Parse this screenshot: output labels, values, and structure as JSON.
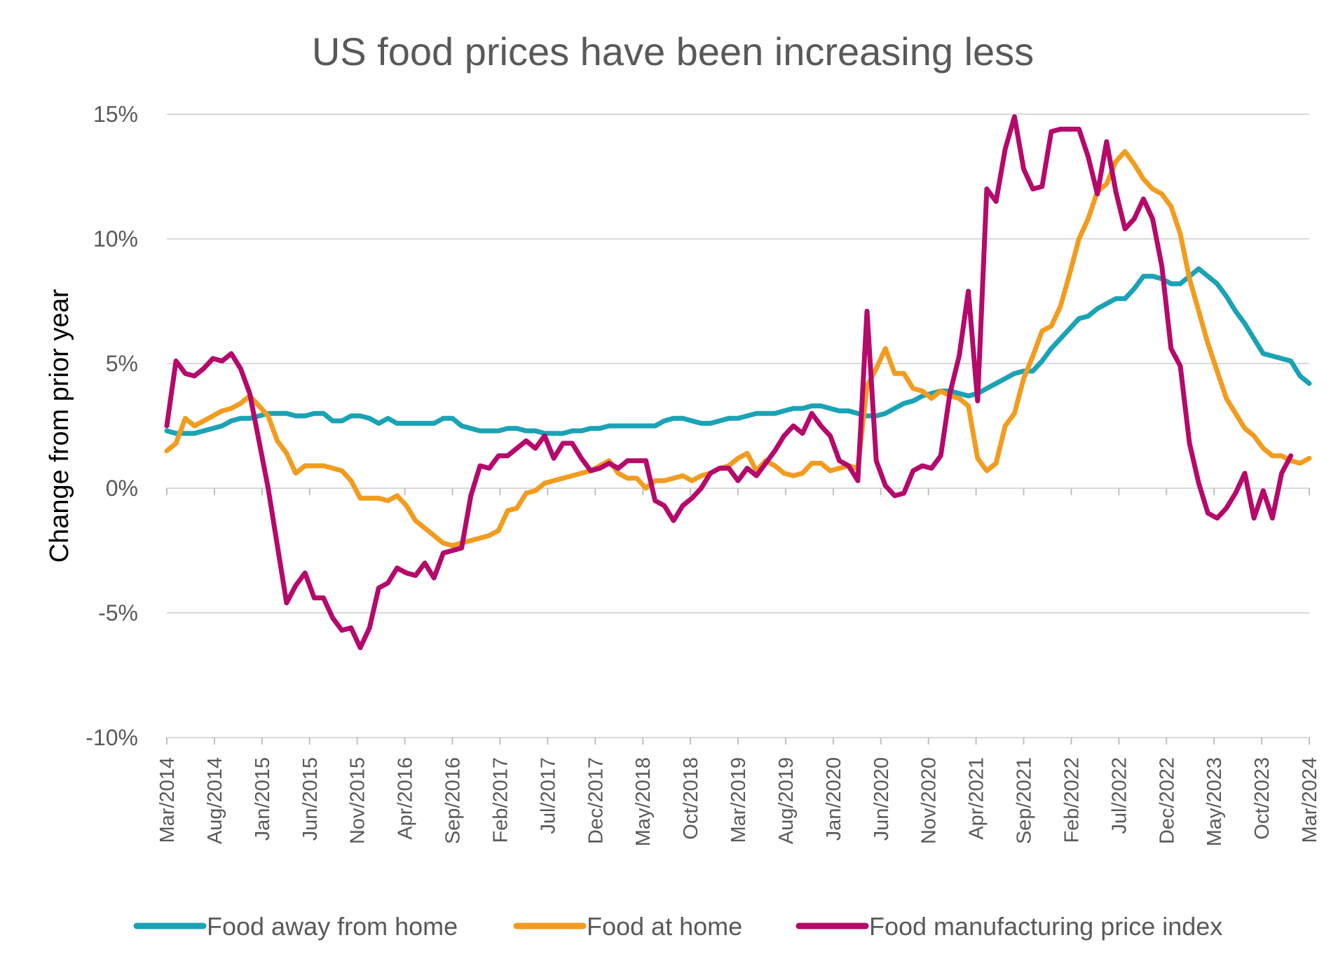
{
  "chart_data": {
    "type": "line",
    "title": "US food prices have been increasing less",
    "ylabel": "Change from prior year",
    "xlabel": "",
    "ylim": [
      -10,
      15
    ],
    "yticks": [
      15,
      10,
      5,
      0,
      -5,
      -10
    ],
    "ytick_labels": [
      "15%",
      "10%",
      "5%",
      "0%",
      "-5%",
      "-10%"
    ],
    "x_start": "Mar/2014",
    "x_end": "Mar/2024",
    "xtick_labels": [
      "Mar/2014",
      "Aug/2014",
      "Jan/2015",
      "Jun/2015",
      "Nov/2015",
      "Apr/2016",
      "Sep/2016",
      "Feb/2017",
      "Jul/2017",
      "Dec/2017",
      "May/2018",
      "Oct/2018",
      "Mar/2019",
      "Aug/2019",
      "Jan/2020",
      "Jun/2020",
      "Nov/2020",
      "Apr/2021",
      "Sep/2021",
      "Feb/2022",
      "Jul/2022",
      "Dec/2022",
      "May/2023",
      "Oct/2023",
      "Mar/2024"
    ],
    "grid": true,
    "legend_position": "bottom",
    "series": [
      {
        "name": "Food away from home",
        "color": "#1aa3b5",
        "values": [
          2.3,
          2.2,
          2.2,
          2.2,
          2.3,
          2.4,
          2.5,
          2.7,
          2.8,
          2.8,
          2.9,
          3.0,
          3.0,
          3.0,
          2.9,
          2.9,
          3.0,
          3.0,
          2.7,
          2.7,
          2.9,
          2.9,
          2.8,
          2.6,
          2.8,
          2.6,
          2.6,
          2.6,
          2.6,
          2.6,
          2.8,
          2.8,
          2.5,
          2.4,
          2.3,
          2.3,
          2.3,
          2.4,
          2.4,
          2.3,
          2.3,
          2.2,
          2.2,
          2.2,
          2.3,
          2.3,
          2.4,
          2.4,
          2.5,
          2.5,
          2.5,
          2.5,
          2.5,
          2.5,
          2.7,
          2.8,
          2.8,
          2.7,
          2.6,
          2.6,
          2.7,
          2.8,
          2.8,
          2.9,
          3.0,
          3.0,
          3.0,
          3.1,
          3.2,
          3.2,
          3.3,
          3.3,
          3.2,
          3.1,
          3.1,
          3.0,
          2.9,
          2.9,
          3.0,
          3.2,
          3.4,
          3.5,
          3.7,
          3.8,
          3.9,
          3.9,
          3.8,
          3.7,
          3.8,
          4.0,
          4.2,
          4.4,
          4.6,
          4.7,
          4.7,
          5.1,
          5.6,
          6.0,
          6.4,
          6.8,
          6.9,
          7.2,
          7.4,
          7.6,
          7.6,
          8.0,
          8.5,
          8.5,
          8.4,
          8.2,
          8.2,
          8.5,
          8.8,
          8.5,
          8.2,
          7.7,
          7.1,
          6.6,
          6.0,
          5.4,
          5.3,
          5.2,
          5.1,
          4.5,
          4.2
        ]
      },
      {
        "name": "Food at home",
        "color": "#f29c1f",
        "values": [
          1.5,
          1.8,
          2.8,
          2.5,
          2.7,
          2.9,
          3.1,
          3.2,
          3.4,
          3.7,
          3.3,
          2.9,
          1.9,
          1.4,
          0.6,
          0.9,
          0.9,
          0.9,
          0.8,
          0.7,
          0.3,
          -0.4,
          -0.4,
          -0.4,
          -0.5,
          -0.3,
          -0.7,
          -1.3,
          -1.6,
          -1.9,
          -2.2,
          -2.3,
          -2.2,
          -2.1,
          -2.0,
          -1.9,
          -1.7,
          -0.9,
          -0.8,
          -0.2,
          -0.1,
          0.2,
          0.3,
          0.4,
          0.5,
          0.6,
          0.7,
          0.9,
          1.1,
          0.6,
          0.4,
          0.4,
          0.0,
          0.3,
          0.3,
          0.4,
          0.5,
          0.3,
          0.5,
          0.6,
          0.8,
          0.9,
          1.2,
          1.4,
          0.7,
          1.1,
          0.9,
          0.6,
          0.5,
          0.6,
          1.0,
          1.0,
          0.7,
          0.8,
          0.9,
          0.8,
          4.1,
          4.8,
          5.6,
          4.6,
          4.6,
          4.0,
          3.9,
          3.6,
          3.9,
          3.7,
          3.6,
          3.3,
          1.2,
          0.7,
          1.0,
          2.5,
          3.0,
          4.4,
          5.3,
          6.3,
          6.5,
          7.3,
          8.6,
          10.0,
          10.8,
          11.9,
          12.2,
          13.1,
          13.5,
          13.0,
          12.4,
          12.0,
          11.8,
          11.3,
          10.2,
          8.4,
          7.1,
          5.8,
          4.7,
          3.6,
          3.0,
          2.4,
          2.1,
          1.6,
          1.3,
          1.3,
          1.1,
          1.0,
          1.2
        ]
      },
      {
        "name": "Food manufacturing price index",
        "color": "#b5096b",
        "values": [
          2.5,
          5.1,
          4.6,
          4.5,
          4.8,
          5.2,
          5.1,
          5.4,
          4.8,
          3.8,
          1.9,
          0.0,
          -2.3,
          -4.6,
          -3.9,
          -3.4,
          -4.4,
          -4.4,
          -5.2,
          -5.7,
          -5.6,
          -6.4,
          -5.6,
          -4.0,
          -3.8,
          -3.2,
          -3.4,
          -3.5,
          -3.0,
          -3.6,
          -2.6,
          -2.5,
          -2.4,
          -0.3,
          0.9,
          0.8,
          1.3,
          1.3,
          1.6,
          1.9,
          1.6,
          2.1,
          1.2,
          1.8,
          1.8,
          1.2,
          0.7,
          0.8,
          1.0,
          0.8,
          1.1,
          1.1,
          1.1,
          -0.5,
          -0.7,
          -1.3,
          -0.7,
          -0.4,
          0.0,
          0.6,
          0.8,
          0.8,
          0.3,
          0.8,
          0.5,
          1.0,
          1.5,
          2.1,
          2.5,
          2.2,
          3.0,
          2.5,
          2.1,
          1.1,
          0.9,
          0.3,
          7.1,
          1.1,
          0.1,
          -0.3,
          -0.2,
          0.7,
          0.9,
          0.8,
          1.3,
          3.8,
          5.3,
          7.9,
          3.5,
          12.0,
          11.5,
          13.6,
          14.9,
          12.8,
          12.0,
          12.1,
          14.3,
          14.4,
          14.4,
          14.4,
          13.3,
          11.8,
          13.9,
          11.9,
          10.4,
          10.8,
          11.6,
          10.8,
          8.9,
          5.6,
          4.9,
          1.8,
          0.2,
          -1.0,
          -1.2,
          -0.8,
          -0.2,
          0.6,
          -1.2,
          -0.1,
          -1.2,
          0.6,
          1.3
        ]
      }
    ]
  }
}
